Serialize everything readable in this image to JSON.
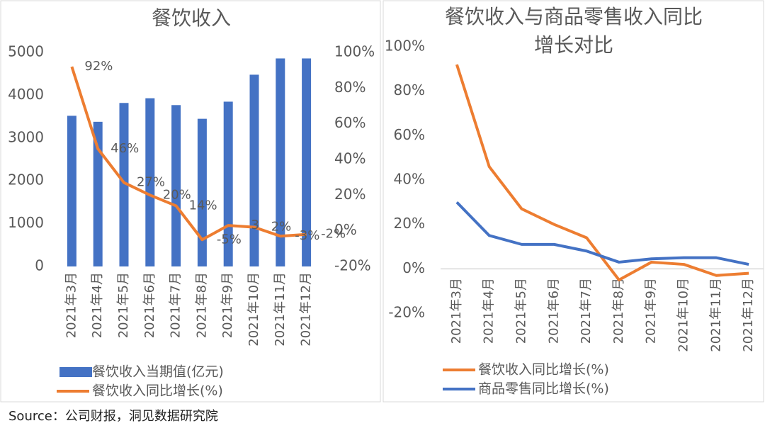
{
  "chart_data": [
    {
      "type": "bar",
      "title": "餐饮收入",
      "categories": [
        "2021年3月",
        "2021年4月",
        "2021年5月",
        "2021年6月",
        "2021年7月",
        "2021年8月",
        "2021年9月",
        "2021年10月",
        "2021年11月",
        "2021年12月"
      ],
      "series": [
        {
          "name": "餐饮收入当期值(亿元)",
          "color": "#4472c4",
          "values": [
            3520,
            3380,
            3820,
            3930,
            3770,
            3450,
            3850,
            4480,
            4860,
            4860
          ]
        },
        {
          "name": "餐饮收入同比增长(%)",
          "color": "#ed7d31",
          "type": "line",
          "axis": "y2",
          "values": [
            92,
            46,
            27,
            20,
            14,
            -5,
            3,
            2,
            -3,
            -2
          ],
          "value_labels": [
            "92%",
            "46%",
            "27%",
            "20%",
            "14%",
            "-5%",
            "3",
            "2%",
            "-3%",
            "-2%"
          ]
        }
      ],
      "ylim": [
        0,
        5000
      ],
      "yticks": [
        0,
        1000,
        2000,
        3000,
        4000,
        5000
      ],
      "y2lim": [
        -20,
        100
      ],
      "y2ticks": [
        {
          "value": -20,
          "label": "-20%"
        },
        {
          "value": 0,
          "label": "0%"
        },
        {
          "value": 20,
          "label": "20%"
        },
        {
          "value": 40,
          "label": "40%"
        },
        {
          "value": 60,
          "label": "60%"
        },
        {
          "value": 80,
          "label": "80%"
        },
        {
          "value": 100,
          "label": "100%"
        }
      ],
      "legend": "bottom"
    },
    {
      "type": "line",
      "title": "餐饮收入与商品零售收入同比增长对比",
      "categories": [
        "2021年3月",
        "2021年4月",
        "2021年5月",
        "2021年6月",
        "2021年7月",
        "2021年8月",
        "2021年9月",
        "2021年10月",
        "2021年11月",
        "2021年12月"
      ],
      "series": [
        {
          "name": "餐饮收入同比增长(%)",
          "color": "#ed7d31",
          "values": [
            92,
            46,
            27,
            20,
            14,
            -5,
            3,
            2,
            -3,
            -2
          ]
        },
        {
          "name": "商品零售同比增长(%)",
          "color": "#4472c4",
          "values": [
            30,
            15,
            11,
            11,
            8,
            3,
            4.5,
            5,
            5,
            2
          ]
        }
      ],
      "ylim": [
        -20,
        100
      ],
      "yticks": [
        {
          "value": -20,
          "label": "-20%"
        },
        {
          "value": 0,
          "label": "0%"
        },
        {
          "value": 20,
          "label": "20%"
        },
        {
          "value": 40,
          "label": "40%"
        },
        {
          "value": 60,
          "label": "60%"
        },
        {
          "value": 80,
          "label": "80%"
        },
        {
          "value": 100,
          "label": "100%"
        }
      ],
      "legend": "bottom"
    }
  ],
  "source": "Source：公司财报，洞见数据研究院"
}
